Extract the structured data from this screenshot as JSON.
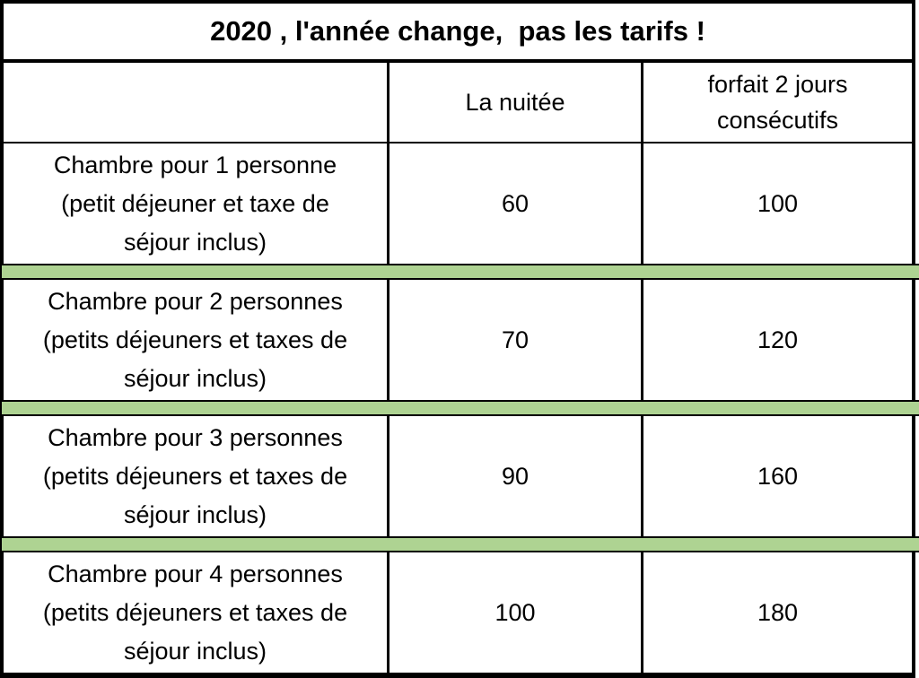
{
  "title": "2020 , l'année change,  pas les tarifs !",
  "header": {
    "col_label": "",
    "col_nuitee": "La nuitée",
    "col_forfait": "forfait 2 jours consécutifs"
  },
  "rows": [
    {
      "label_lines": [
        "Chambre pour 1 personne",
        "(petit déjeuner et taxe de",
        "séjour inclus)"
      ],
      "la_nuitee": "60",
      "forfait_2_jours": "100"
    },
    {
      "label_lines": [
        "Chambre pour 2 personnes",
        "(petits déjeuners et taxes de",
        "séjour inclus)"
      ],
      "la_nuitee": "70",
      "forfait_2_jours": "120"
    },
    {
      "label_lines": [
        "Chambre pour 3 personnes",
        "(petits déjeuners et taxes de",
        "séjour inclus)"
      ],
      "la_nuitee": "90",
      "forfait_2_jours": "160"
    },
    {
      "label_lines": [
        "Chambre pour 4 personnes",
        "(petits déjeuners et taxes de",
        "séjour inclus)"
      ],
      "la_nuitee": "100",
      "forfait_2_jours": "180"
    }
  ],
  "colors": {
    "separator_green": "#aed392",
    "border": "#000000",
    "background": "#ffffff",
    "text": "#000000"
  }
}
